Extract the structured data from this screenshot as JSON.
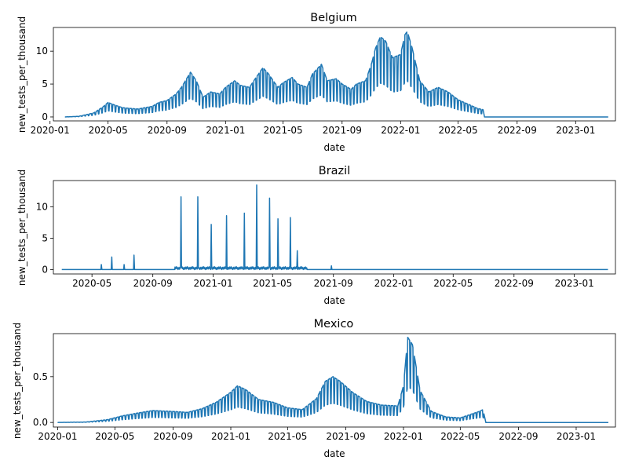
{
  "chart_data": [
    {
      "type": "line",
      "title": "Belgium",
      "xlabel": "date",
      "ylabel": "new_tests_per_thousand",
      "xlim": [
        "2020-01-08",
        "2023-03-25"
      ],
      "ylim": [
        -0.6,
        13.6
      ],
      "x_ticks": [
        "2020-01",
        "2020-05",
        "2020-09",
        "2021-01",
        "2021-05",
        "2021-09",
        "2022-01",
        "2022-05",
        "2022-09",
        "2023-01"
      ],
      "y_ticks": [
        0,
        5,
        10
      ],
      "grid": false,
      "series": [
        {
          "color": "#1f77b4",
          "points": [
            [
              "2020-02-01",
              0
            ],
            [
              "2020-03-01",
              0.1
            ],
            [
              "2020-04-01",
              0.6
            ],
            [
              "2020-04-20",
              1.5
            ],
            [
              "2020-05-01",
              2.2
            ],
            [
              "2020-05-15",
              1.8
            ],
            [
              "2020-06-01",
              1.4
            ],
            [
              "2020-07-01",
              1.2
            ],
            [
              "2020-08-01",
              1.6
            ],
            [
              "2020-08-15",
              2.2
            ],
            [
              "2020-09-01",
              2.5
            ],
            [
              "2020-09-20",
              3.5
            ],
            [
              "2020-10-01",
              4.5
            ],
            [
              "2020-10-20",
              6.8
            ],
            [
              "2020-11-01",
              5.5
            ],
            [
              "2020-11-15",
              3.0
            ],
            [
              "2020-12-01",
              3.8
            ],
            [
              "2020-12-20",
              3.5
            ],
            [
              "2021-01-01",
              4.5
            ],
            [
              "2021-01-20",
              5.5
            ],
            [
              "2021-02-01",
              4.8
            ],
            [
              "2021-02-20",
              4.5
            ],
            [
              "2021-03-01",
              5.5
            ],
            [
              "2021-03-20",
              7.5
            ],
            [
              "2021-04-01",
              6.5
            ],
            [
              "2021-04-20",
              4.5
            ],
            [
              "2021-05-01",
              5.2
            ],
            [
              "2021-05-20",
              6.0
            ],
            [
              "2021-06-01",
              5.0
            ],
            [
              "2021-06-20",
              4.5
            ],
            [
              "2021-07-01",
              6.5
            ],
            [
              "2021-07-20",
              8.0
            ],
            [
              "2021-08-01",
              5.5
            ],
            [
              "2021-08-20",
              5.8
            ],
            [
              "2021-09-01",
              5.0
            ],
            [
              "2021-09-20",
              4.2
            ],
            [
              "2021-10-01",
              5.0
            ],
            [
              "2021-10-20",
              5.5
            ],
            [
              "2021-11-01",
              8.0
            ],
            [
              "2021-11-10",
              10.5
            ],
            [
              "2021-11-20",
              12.2
            ],
            [
              "2021-12-01",
              11.5
            ],
            [
              "2021-12-15",
              9.0
            ],
            [
              "2022-01-01",
              9.5
            ],
            [
              "2022-01-10",
              12.5
            ],
            [
              "2022-01-15",
              13.0
            ],
            [
              "2022-01-25",
              10.5
            ],
            [
              "2022-02-10",
              5.5
            ],
            [
              "2022-03-01",
              3.8
            ],
            [
              "2022-03-20",
              4.5
            ],
            [
              "2022-04-10",
              3.8
            ],
            [
              "2022-05-01",
              2.6
            ],
            [
              "2022-05-20",
              2.0
            ],
            [
              "2022-06-10",
              1.3
            ],
            [
              "2022-06-22",
              1.1
            ],
            [
              "2022-06-25",
              0
            ],
            [
              "2023-03-10",
              0
            ]
          ]
        }
      ]
    },
    {
      "type": "line",
      "title": "Brazil",
      "xlabel": "date",
      "ylabel": "new_tests_per_thousand",
      "xlim": [
        "2020-02-13",
        "2023-03-25"
      ],
      "ylim": [
        -0.7,
        14.2
      ],
      "x_ticks": [
        "2020-05",
        "2020-09",
        "2021-01",
        "2021-05",
        "2021-09",
        "2022-01",
        "2022-05",
        "2022-09",
        "2023-01"
      ],
      "y_ticks": [
        0,
        5,
        10
      ],
      "grid": false,
      "series": [
        {
          "color": "#1f77b4",
          "points": [
            [
              "2020-03-01",
              0
            ],
            [
              "2020-05-20",
              0.8
            ],
            [
              "2020-06-10",
              2.0
            ],
            [
              "2020-07-05",
              0.8
            ],
            [
              "2020-07-25",
              2.3
            ],
            [
              "2020-10-28",
              11.6
            ],
            [
              "2020-12-01",
              11.6
            ],
            [
              "2020-12-28",
              7.2
            ],
            [
              "2021-01-28",
              8.6
            ],
            [
              "2021-03-05",
              9.0
            ],
            [
              "2021-03-30",
              13.5
            ],
            [
              "2021-04-25",
              11.4
            ],
            [
              "2021-05-12",
              8.1
            ],
            [
              "2021-06-06",
              8.3
            ],
            [
              "2021-06-20",
              3.0
            ],
            [
              "2021-08-28",
              0.6
            ],
            [
              "2023-03-10",
              0
            ]
          ]
        }
      ]
    },
    {
      "type": "line",
      "title": "Mexico",
      "xlabel": "date",
      "ylabel": "new_tests_per_thousand",
      "xlim": [
        "2019-12-23",
        "2023-03-25"
      ],
      "ylim": [
        -0.05,
        0.97
      ],
      "x_ticks": [
        "2020-01",
        "2020-05",
        "2020-09",
        "2021-01",
        "2021-05",
        "2021-09",
        "2022-01",
        "2022-05",
        "2022-09",
        "2023-01"
      ],
      "y_ticks": [
        0.0,
        0.5
      ],
      "grid": false,
      "series": [
        {
          "color": "#1f77b4",
          "points": [
            [
              "2020-01-01",
              0
            ],
            [
              "2020-03-01",
              0.005
            ],
            [
              "2020-04-15",
              0.03
            ],
            [
              "2020-05-15",
              0.07
            ],
            [
              "2020-06-15",
              0.1
            ],
            [
              "2020-07-20",
              0.13
            ],
            [
              "2020-09-01",
              0.12
            ],
            [
              "2020-10-01",
              0.11
            ],
            [
              "2020-11-01",
              0.15
            ],
            [
              "2020-12-01",
              0.22
            ],
            [
              "2021-01-01",
              0.33
            ],
            [
              "2021-01-15",
              0.4
            ],
            [
              "2021-02-01",
              0.36
            ],
            [
              "2021-03-01",
              0.25
            ],
            [
              "2021-04-01",
              0.22
            ],
            [
              "2021-05-01",
              0.16
            ],
            [
              "2021-06-01",
              0.14
            ],
            [
              "2021-07-01",
              0.26
            ],
            [
              "2021-07-20",
              0.45
            ],
            [
              "2021-08-05",
              0.5
            ],
            [
              "2021-08-20",
              0.45
            ],
            [
              "2021-09-15",
              0.33
            ],
            [
              "2021-10-15",
              0.23
            ],
            [
              "2021-11-15",
              0.19
            ],
            [
              "2021-12-20",
              0.18
            ],
            [
              "2022-01-01",
              0.4
            ],
            [
              "2022-01-10",
              0.93
            ],
            [
              "2022-01-20",
              0.85
            ],
            [
              "2022-02-05",
              0.35
            ],
            [
              "2022-03-01",
              0.12
            ],
            [
              "2022-04-01",
              0.06
            ],
            [
              "2022-05-01",
              0.05
            ],
            [
              "2022-06-10",
              0.12
            ],
            [
              "2022-06-18",
              0.14
            ],
            [
              "2022-06-24",
              0
            ],
            [
              "2023-03-10",
              0
            ]
          ]
        }
      ]
    }
  ]
}
